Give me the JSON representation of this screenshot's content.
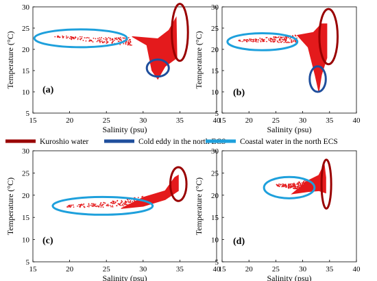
{
  "colors": {
    "kuroshio_fill": "#e41a1c",
    "kuroshio_circle": "#990000",
    "cold_eddy_circle": "#1f4e9c",
    "coastal_circle": "#1ea0dc"
  },
  "legend": [
    {
      "label": "Kuroshio water",
      "color": "#990000"
    },
    {
      "label": "Cold eddy in the north ECS",
      "color": "#1f4e9c"
    },
    {
      "label": "Coastal water in the north ECS",
      "color": "#1ea0dc"
    }
  ],
  "chart_data": [
    {
      "type": "scatter",
      "panel_label": "(a)",
      "xlabel": "Salinity (psu)",
      "ylabel": "Temperature (°C)",
      "xlim": [
        15,
        40
      ],
      "ylim": [
        5,
        30
      ],
      "xticks": [
        "15",
        "20",
        "25",
        "30",
        "35",
        "40"
      ],
      "yticks": [
        "5",
        "10",
        "15",
        "20",
        "25",
        "30"
      ],
      "scatter_envelope": {
        "tail": [
          [
            18.0,
            23.0
          ],
          [
            24.0,
            22.2
          ],
          [
            28.5,
            21.8
          ]
        ],
        "body": [
          [
            28.5,
            23.0
          ],
          [
            32.0,
            22.5
          ],
          [
            33.5,
            24.5
          ],
          [
            34.5,
            27.5
          ],
          [
            34.6,
            18.0
          ],
          [
            33.0,
            16.0
          ],
          [
            32.0,
            13.0
          ],
          [
            31.2,
            15.0
          ],
          [
            30.5,
            21.0
          ]
        ]
      },
      "ellipses": [
        {
          "water": "Coastal water in the north ECS",
          "center": [
            21.5,
            22.6
          ],
          "radii": [
            6.3,
            2.1
          ]
        },
        {
          "water": "Cold eddy in the north ECS",
          "center": [
            32.0,
            15.6
          ],
          "radii": [
            1.5,
            2.0
          ]
        },
        {
          "water": "Kuroshio water",
          "center": [
            35.0,
            24.0
          ],
          "radii": [
            1.1,
            6.7
          ]
        }
      ]
    },
    {
      "type": "scatter",
      "panel_label": "(b)",
      "xlabel": "Salinity (psu)",
      "ylabel": "Temperature (°C)",
      "xlim": [
        15,
        40
      ],
      "ylim": [
        5,
        30
      ],
      "xticks": [
        "15",
        "20",
        "25",
        "30",
        "35",
        "40"
      ],
      "yticks": [
        "5",
        "10",
        "15",
        "20",
        "25",
        "30"
      ],
      "scatter_envelope": {
        "tail": [
          [
            17.5,
            22.0
          ],
          [
            24.0,
            22.3
          ],
          [
            29.0,
            22.5
          ]
        ],
        "body": [
          [
            29.0,
            23.3
          ],
          [
            32.0,
            24.0
          ],
          [
            33.5,
            26.0
          ],
          [
            34.5,
            26.0
          ],
          [
            34.5,
            18.0
          ],
          [
            33.5,
            14.0
          ],
          [
            33.0,
            10.0
          ],
          [
            32.3,
            14.0
          ],
          [
            31.0,
            20.5
          ]
        ]
      },
      "ellipses": [
        {
          "water": "Coastal water in the north ECS",
          "center": [
            22.5,
            21.8
          ],
          "radii": [
            6.5,
            2.0
          ]
        },
        {
          "water": "Cold eddy in the north ECS",
          "center": [
            32.8,
            13.0
          ],
          "radii": [
            1.5,
            3.0
          ]
        },
        {
          "water": "Kuroshio water",
          "center": [
            34.8,
            23.0
          ],
          "radii": [
            1.7,
            6.5
          ]
        }
      ]
    },
    {
      "type": "scatter",
      "panel_label": "(c)",
      "xlabel": "Salinity (psu)",
      "ylabel": "Temperature (°C)",
      "xlim": [
        15,
        40
      ],
      "ylim": [
        5,
        30
      ],
      "xticks": [
        "15",
        "20",
        "25",
        "30",
        "35",
        "40"
      ],
      "yticks": [
        "5",
        "10",
        "15",
        "20",
        "25",
        "30"
      ],
      "scatter_envelope": {
        "tail": [
          [
            19.5,
            17.5
          ],
          [
            25.0,
            17.8
          ],
          [
            30.0,
            18.8
          ]
        ],
        "body": [
          [
            30.0,
            19.5
          ],
          [
            33.0,
            21.0
          ],
          [
            34.3,
            24.0
          ],
          [
            34.8,
            24.5
          ],
          [
            34.8,
            21.0
          ],
          [
            33.0,
            19.0
          ],
          [
            30.0,
            17.5
          ],
          [
            27.0,
            17.0
          ]
        ]
      },
      "ellipses": [
        {
          "water": "Coastal water in the north ECS",
          "center": [
            24.5,
            17.6
          ],
          "radii": [
            6.8,
            2.0
          ]
        },
        {
          "water": "Kuroshio water",
          "center": [
            34.8,
            22.5
          ],
          "radii": [
            1.1,
            3.8
          ]
        }
      ]
    },
    {
      "type": "scatter",
      "panel_label": "(d)",
      "xlabel": "Salinity (psu)",
      "ylabel": "Temperature (°C)",
      "xlim": [
        15,
        40
      ],
      "ylim": [
        5,
        30
      ],
      "xticks": [
        "15",
        "20",
        "25",
        "30",
        "35",
        "40"
      ],
      "yticks": [
        "5",
        "10",
        "15",
        "20",
        "25",
        "30"
      ],
      "scatter_envelope": {
        "tail": [
          [
            25.0,
            22.3
          ],
          [
            28.0,
            22.0
          ],
          [
            31.0,
            22.5
          ]
        ],
        "body": [
          [
            31.0,
            23.3
          ],
          [
            33.0,
            24.5
          ],
          [
            34.0,
            27.0
          ],
          [
            34.3,
            24.0
          ],
          [
            34.3,
            20.5
          ],
          [
            33.0,
            21.0
          ],
          [
            31.0,
            20.8
          ],
          [
            28.0,
            20.3
          ]
        ]
      },
      "ellipses": [
        {
          "water": "Coastal water in the north ECS",
          "center": [
            27.5,
            21.7
          ],
          "radii": [
            4.7,
            2.4
          ]
        },
        {
          "water": "Kuroshio water",
          "center": [
            34.4,
            22.5
          ],
          "radii": [
            0.9,
            5.5
          ]
        }
      ]
    }
  ]
}
